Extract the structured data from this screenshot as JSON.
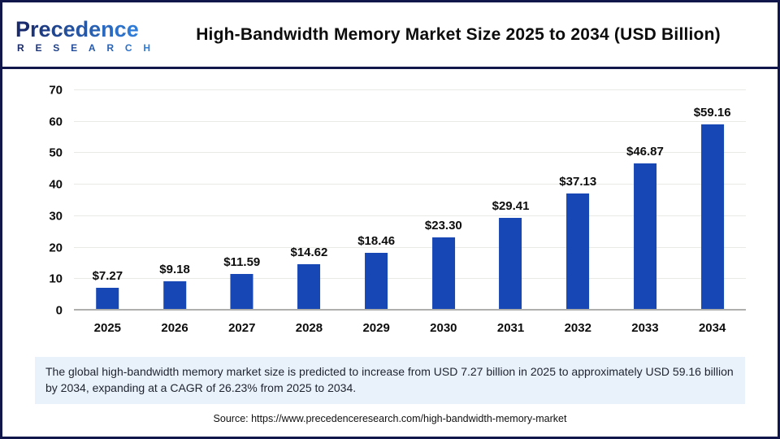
{
  "logo": {
    "brand_top": "Precedence",
    "brand_bottom": "RESEARCH",
    "color_start": "#1A2B6D",
    "color_end": "#2F7BD6"
  },
  "header": {
    "title": "High-Bandwidth Memory Market Size 2025 to 2034 (USD Billion)"
  },
  "chart_data": {
    "type": "bar",
    "title": "High-Bandwidth Memory Market Size 2025 to 2034 (USD Billion)",
    "categories": [
      "2025",
      "2026",
      "2027",
      "2028",
      "2029",
      "2030",
      "2031",
      "2032",
      "2033",
      "2034"
    ],
    "values": [
      7.27,
      9.18,
      11.59,
      14.62,
      18.46,
      23.3,
      29.41,
      37.13,
      46.87,
      59.16
    ],
    "bar_labels": [
      "$7.27",
      "$9.18",
      "$11.59",
      "$14.62",
      "$18.46",
      "$23.30",
      "$29.41",
      "$37.13",
      "$46.87",
      "$59.16"
    ],
    "xlabel": "",
    "ylabel": "",
    "ylim": [
      0,
      70
    ],
    "yticks": [
      0,
      10,
      20,
      30,
      40,
      50,
      60,
      70
    ],
    "grid": true,
    "legend": false,
    "bar_color": "#1747B4"
  },
  "summary": {
    "text": "The global high-bandwidth memory market size is predicted to increase from USD 7.27 billion in 2025 to approximately USD 59.16 billion by 2034, expanding at a CAGR of 26.23% from 2025 to 2034."
  },
  "source": {
    "text": "Source: https://www.precedenceresearch.com/high-bandwidth-memory-market"
  },
  "colors": {
    "accent_navy": "#12174B",
    "bar_blue": "#1747B4",
    "summary_bg": "#E9F1FA",
    "gridline": "#E9E9E5",
    "axis_line": "#AFAFAD"
  }
}
